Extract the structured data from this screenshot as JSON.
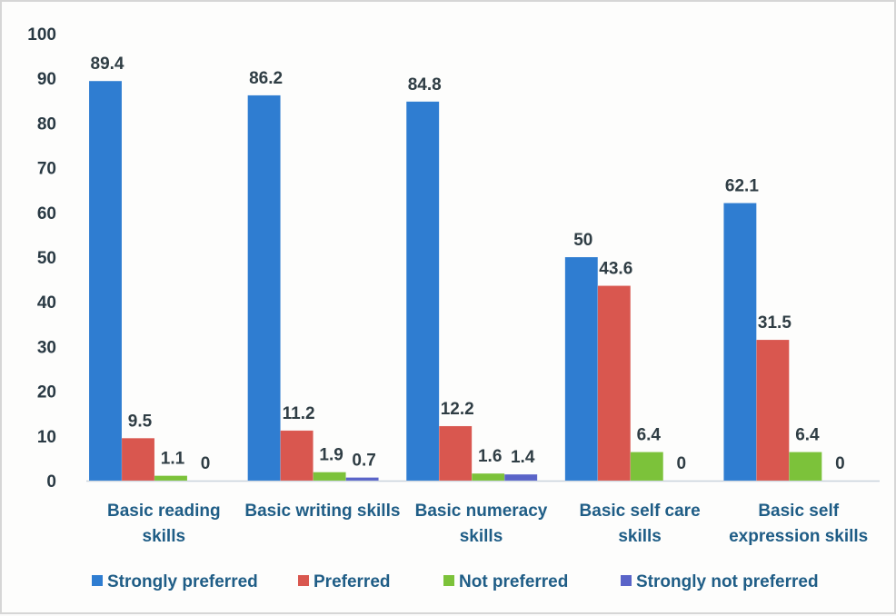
{
  "chart_data": {
    "type": "bar",
    "title": "",
    "xlabel": "",
    "ylabel": "",
    "ylim": [
      0,
      100
    ],
    "yticks": [
      0,
      10,
      20,
      30,
      40,
      50,
      60,
      70,
      80,
      90,
      100
    ],
    "grid": false,
    "legend_position": "bottom",
    "categories": [
      [
        "Basic reading",
        "skills"
      ],
      [
        "Basic writing skills"
      ],
      [
        "Basic numeracy",
        "skills"
      ],
      [
        "Basic self care",
        "skills"
      ],
      [
        "Basic self",
        "expression skills"
      ]
    ],
    "series": [
      {
        "name": "Strongly preferred",
        "color": "#2f7dd1",
        "values": [
          89.4,
          86.2,
          84.8,
          50,
          62.1
        ]
      },
      {
        "name": "Preferred",
        "color": "#d9574f",
        "values": [
          9.5,
          11.2,
          12.2,
          43.6,
          31.5
        ]
      },
      {
        "name": "Not preferred",
        "color": "#7cc23a",
        "values": [
          1.1,
          1.9,
          1.6,
          6.4,
          6.4
        ]
      },
      {
        "name": "Strongly not preferred",
        "color": "#5a64c8",
        "values": [
          0,
          0.7,
          1.4,
          0,
          0
        ]
      }
    ],
    "data_labels": [
      [
        "89.4",
        "86.2",
        "84.8",
        "50",
        "62.1"
      ],
      [
        "9.5",
        "11.2",
        "12.2",
        "43.6",
        "31.5"
      ],
      [
        "1.1",
        "1.9",
        "1.6",
        "6.4",
        "6.4"
      ],
      [
        "0",
        "0.7",
        "1.4",
        "0",
        "0"
      ]
    ]
  }
}
